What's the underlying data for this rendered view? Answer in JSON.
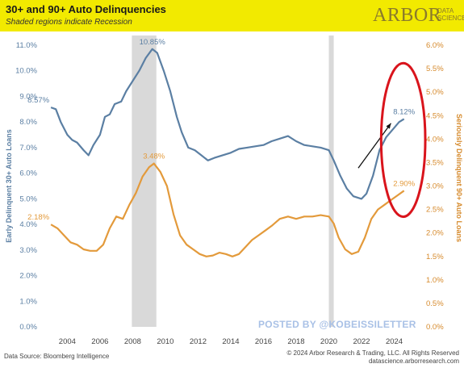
{
  "header": {
    "title": "30+ and 90+ Auto Delinquencies",
    "subtitle": "Shaded regions indicate Recession",
    "logo_main": "ARBOR",
    "logo_sub_1": "DATA",
    "logo_sub_2": "SCIENCE",
    "background_color": "#f2ea00"
  },
  "watermark": "POSTED BY @KOBEISSILETTER",
  "footer": {
    "source": "Data Source: Bloomberg Intelligence",
    "copyright": "© 2024 Arbor Research & Trading, LLC. All Rights Reserved",
    "website": "datascience.arborresearch.com"
  },
  "chart_data": {
    "type": "line",
    "title": "30+ and 90+ Auto Delinquencies",
    "subtitle": "Shaded regions indicate Recession",
    "x_ticks": [
      "2004",
      "2006",
      "2008",
      "2010",
      "2012",
      "2014",
      "2016",
      "2018",
      "2020",
      "2022",
      "2024"
    ],
    "xlim": [
      2002.6,
      2025.8
    ],
    "ylabel_left": "Early Delinquent 30+ Auto Loans",
    "ylabel_right": "Seriously Delinquent 90+ Auto Loans",
    "ylim_left": [
      0,
      11
    ],
    "ylim_right": [
      0,
      6
    ],
    "y_ticks_left": [
      "0.0%",
      "1.0%",
      "2.0%",
      "3.0%",
      "4.0%",
      "5.0%",
      "6.0%",
      "7.0%",
      "8.0%",
      "9.0%",
      "10.0%",
      "11.0%"
    ],
    "y_ticks_right": [
      "0.0%",
      "0.5%",
      "1.0%",
      "1.5%",
      "2.0%",
      "2.5%",
      "3.0%",
      "3.5%",
      "4.0%",
      "4.5%",
      "5.0%",
      "5.5%",
      "6.0%"
    ],
    "recessions": [
      [
        2007.95,
        2009.45
      ],
      [
        2020.0,
        2020.3
      ]
    ],
    "series": [
      {
        "axis": "left",
        "color": "#5b7fa3",
        "points": [
          [
            2003.0,
            8.57
          ],
          [
            2003.3,
            8.5
          ],
          [
            2003.6,
            8.0
          ],
          [
            2004.0,
            7.5
          ],
          [
            2004.3,
            7.3
          ],
          [
            2004.6,
            7.2
          ],
          [
            2005.0,
            6.9
          ],
          [
            2005.3,
            6.7
          ],
          [
            2005.6,
            7.1
          ],
          [
            2006.0,
            7.5
          ],
          [
            2006.3,
            8.2
          ],
          [
            2006.6,
            8.3
          ],
          [
            2006.9,
            8.7
          ],
          [
            2007.3,
            8.8
          ],
          [
            2007.6,
            9.2
          ],
          [
            2008.0,
            9.6
          ],
          [
            2008.4,
            10.0
          ],
          [
            2008.8,
            10.5
          ],
          [
            2009.2,
            10.85
          ],
          [
            2009.5,
            10.7
          ],
          [
            2009.9,
            10.0
          ],
          [
            2010.3,
            9.2
          ],
          [
            2010.7,
            8.2
          ],
          [
            2011.0,
            7.6
          ],
          [
            2011.4,
            7.0
          ],
          [
            2011.8,
            6.9
          ],
          [
            2012.2,
            6.7
          ],
          [
            2012.6,
            6.5
          ],
          [
            2013.0,
            6.6
          ],
          [
            2013.5,
            6.7
          ],
          [
            2014.0,
            6.8
          ],
          [
            2014.5,
            6.95
          ],
          [
            2015.0,
            7.0
          ],
          [
            2015.5,
            7.05
          ],
          [
            2016.0,
            7.1
          ],
          [
            2016.5,
            7.25
          ],
          [
            2017.0,
            7.35
          ],
          [
            2017.5,
            7.45
          ],
          [
            2018.0,
            7.25
          ],
          [
            2018.5,
            7.1
          ],
          [
            2019.0,
            7.05
          ],
          [
            2019.5,
            7.0
          ],
          [
            2020.0,
            6.9
          ],
          [
            2020.3,
            6.5
          ],
          [
            2020.7,
            5.9
          ],
          [
            2021.1,
            5.4
          ],
          [
            2021.5,
            5.1
          ],
          [
            2022.0,
            5.0
          ],
          [
            2022.3,
            5.2
          ],
          [
            2022.7,
            5.9
          ],
          [
            2023.1,
            6.9
          ],
          [
            2023.5,
            7.4
          ],
          [
            2023.9,
            7.7
          ],
          [
            2024.3,
            8.0
          ],
          [
            2024.6,
            8.12
          ]
        ]
      },
      {
        "axis": "right",
        "color": "#e39a3b",
        "points": [
          [
            2003.0,
            2.18
          ],
          [
            2003.4,
            2.1
          ],
          [
            2003.8,
            1.95
          ],
          [
            2004.2,
            1.8
          ],
          [
            2004.6,
            1.75
          ],
          [
            2005.0,
            1.65
          ],
          [
            2005.4,
            1.62
          ],
          [
            2005.8,
            1.62
          ],
          [
            2006.2,
            1.75
          ],
          [
            2006.6,
            2.1
          ],
          [
            2007.0,
            2.35
          ],
          [
            2007.4,
            2.3
          ],
          [
            2007.8,
            2.6
          ],
          [
            2008.2,
            2.85
          ],
          [
            2008.6,
            3.2
          ],
          [
            2009.0,
            3.4
          ],
          [
            2009.3,
            3.48
          ],
          [
            2009.7,
            3.3
          ],
          [
            2010.1,
            3.0
          ],
          [
            2010.5,
            2.4
          ],
          [
            2010.9,
            1.95
          ],
          [
            2011.3,
            1.75
          ],
          [
            2011.7,
            1.65
          ],
          [
            2012.1,
            1.55
          ],
          [
            2012.5,
            1.5
          ],
          [
            2012.9,
            1.52
          ],
          [
            2013.3,
            1.58
          ],
          [
            2013.7,
            1.55
          ],
          [
            2014.1,
            1.5
          ],
          [
            2014.5,
            1.55
          ],
          [
            2014.9,
            1.7
          ],
          [
            2015.3,
            1.85
          ],
          [
            2015.7,
            1.95
          ],
          [
            2016.1,
            2.05
          ],
          [
            2016.5,
            2.15
          ],
          [
            2017.0,
            2.3
          ],
          [
            2017.5,
            2.35
          ],
          [
            2018.0,
            2.3
          ],
          [
            2018.5,
            2.35
          ],
          [
            2019.0,
            2.35
          ],
          [
            2019.5,
            2.38
          ],
          [
            2020.0,
            2.35
          ],
          [
            2020.3,
            2.2
          ],
          [
            2020.6,
            1.9
          ],
          [
            2021.0,
            1.65
          ],
          [
            2021.4,
            1.55
          ],
          [
            2021.8,
            1.6
          ],
          [
            2022.2,
            1.9
          ],
          [
            2022.6,
            2.3
          ],
          [
            2023.0,
            2.5
          ],
          [
            2023.4,
            2.6
          ],
          [
            2023.8,
            2.7
          ],
          [
            2024.2,
            2.8
          ],
          [
            2024.6,
            2.9
          ]
        ]
      }
    ],
    "labels": [
      {
        "axis": "left",
        "x": 2003.0,
        "y": 8.57,
        "text": "8.57%",
        "color": "#5b7fa3",
        "anchor": "end"
      },
      {
        "axis": "left",
        "x": 2009.2,
        "y": 10.85,
        "text": "10.85%",
        "color": "#5b7fa3",
        "anchor": "middle"
      },
      {
        "axis": "left",
        "x": 2024.6,
        "y": 8.12,
        "text": "8.12%",
        "color": "#5b7fa3",
        "anchor": "middle"
      },
      {
        "axis": "right",
        "x": 2003.0,
        "y": 2.18,
        "text": "2.18%",
        "color": "#e39a3b",
        "anchor": "end"
      },
      {
        "axis": "right",
        "x": 2009.3,
        "y": 3.48,
        "text": "3.48%",
        "color": "#e39a3b",
        "anchor": "middle"
      },
      {
        "axis": "right",
        "x": 2024.6,
        "y": 2.9,
        "text": "2.90%",
        "color": "#e39a3b",
        "anchor": "middle"
      }
    ],
    "annotations": {
      "arrow": {
        "axis": "left",
        "from": [
          2021.8,
          6.2
        ],
        "to": [
          2023.8,
          7.95
        ],
        "color": "#111111"
      },
      "ellipse": {
        "axis": "left",
        "center": [
          2024.55,
          7.3
        ],
        "rx_years": 1.35,
        "ry_units": 3.0,
        "color": "#d9141c"
      }
    }
  }
}
